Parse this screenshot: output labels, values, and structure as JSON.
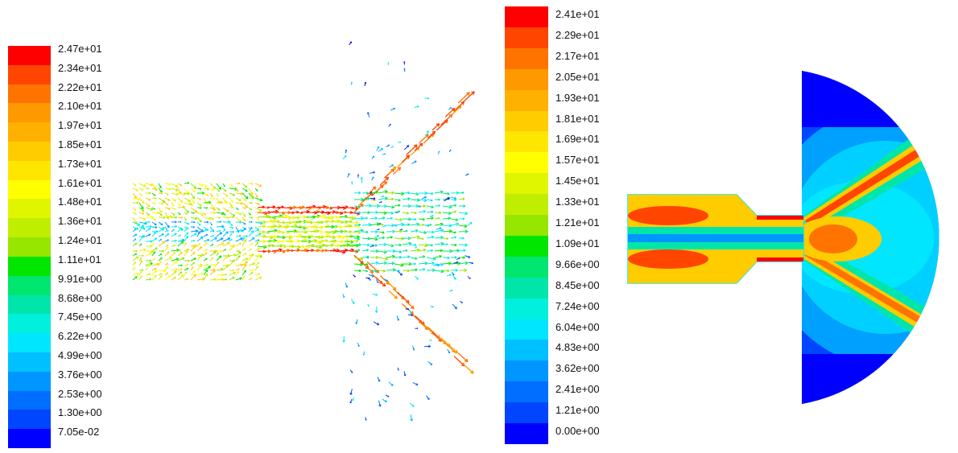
{
  "left_plot": {
    "legend_labels": [
      "2.47e+01",
      "2.34e+01",
      "2.22e+01",
      "2.10e+01",
      "1.97e+01",
      "1.85e+01",
      "1.73e+01",
      "1.61e+01",
      "1.48e+01",
      "1.36e+01",
      "1.24e+01",
      "1.11e+01",
      "9.91e+00",
      "8.68e+00",
      "7.45e+00",
      "6.22e+00",
      "4.99e+00",
      "3.76e+00",
      "2.53e+00",
      "1.30e+00",
      "7.05e-02"
    ]
  },
  "right_plot": {
    "legend_labels": [
      "2.41e+01",
      "2.29e+01",
      "2.17e+01",
      "2.05e+01",
      "1.93e+01",
      "1.81e+01",
      "1.69e+01",
      "1.57e+01",
      "1.45e+01",
      "1.33e+01",
      "1.21e+01",
      "1.09e+01",
      "9.66e+00",
      "8.45e+00",
      "7.24e+00",
      "6.04e+00",
      "4.83e+00",
      "3.62e+00",
      "2.41e+00",
      "1.21e+00",
      "0.00e+00"
    ]
  },
  "colormap": [
    "#ff0000",
    "#ff4500",
    "#ff7300",
    "#ff9900",
    "#ffb000",
    "#ffcc00",
    "#ffe600",
    "#ffff00",
    "#e0f500",
    "#c0ee00",
    "#96e600",
    "#00e600",
    "#00e66e",
    "#00e6aa",
    "#00f0dd",
    "#00e6ff",
    "#00c0ff",
    "#0096ff",
    "#006eff",
    "#0046ff",
    "#0000ff"
  ]
}
